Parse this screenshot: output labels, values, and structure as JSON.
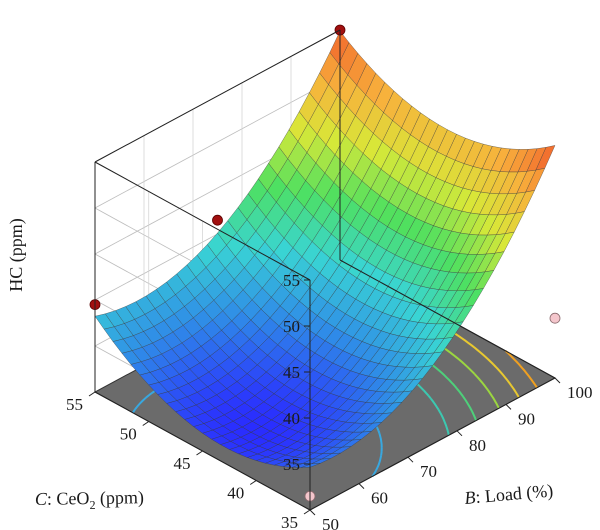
{
  "chart_data": {
    "type": "surface",
    "zlabel": "HC (ppm)",
    "xlabel_var": "B",
    "xlabel_rest": ": Load (%)",
    "ylabel_var": "C",
    "ylabel_mid": ": CeO",
    "ylabel_sub": "2",
    "ylabel_rest": " (ppm)",
    "x_axis": {
      "name": "Load",
      "unit": "%",
      "range": [
        50,
        100
      ],
      "ticks": [
        50,
        60,
        70,
        80,
        90,
        100
      ]
    },
    "y_axis": {
      "name": "CeO2",
      "unit": "ppm",
      "range": [
        35,
        55
      ],
      "ticks": [
        35,
        40,
        45,
        50,
        55
      ]
    },
    "z_axis": {
      "name": "HC",
      "unit": "ppm",
      "range": [
        30,
        55
      ],
      "ticks": [
        35,
        40,
        45,
        50,
        55
      ]
    },
    "surface_corners": [
      {
        "load": 50,
        "ceo2": 35,
        "hc": 32
      },
      {
        "load": 100,
        "ceo2": 35,
        "hc": 51.5
      },
      {
        "load": 50,
        "ceo2": 55,
        "hc": 38.2
      },
      {
        "load": 100,
        "ceo2": 55,
        "hc": 56
      }
    ],
    "surface_minimum": {
      "load": 55,
      "ceo2": 43,
      "hc": 31.5
    },
    "design_points": [
      {
        "load": 50,
        "ceo2": 55,
        "hc": 39.5,
        "position": "above"
      },
      {
        "load": 75,
        "ceo2": 55,
        "hc": 41.5,
        "position": "above"
      },
      {
        "load": 100,
        "ceo2": 55,
        "hc": 55,
        "position": "above"
      },
      {
        "load": 50,
        "ceo2": 35,
        "hc": 31.5,
        "position": "below"
      },
      {
        "load": 75,
        "ceo2": 45,
        "hc": 33.5,
        "position": "below"
      },
      {
        "load": 100,
        "ceo2": 35,
        "hc": 36.5,
        "position": "below"
      },
      {
        "load": 100,
        "ceo2": 45,
        "hc": 49,
        "position": "below"
      }
    ],
    "floor_contours": [
      {
        "level": 35,
        "color": "#38a8e0"
      },
      {
        "level": 40,
        "color": "#3cc8b0"
      },
      {
        "level": 43,
        "color": "#4ed07a"
      },
      {
        "level": 46,
        "color": "#9bd640"
      },
      {
        "level": 49,
        "color": "#e8c830"
      },
      {
        "level": 52,
        "color": "#f0a020"
      }
    ],
    "colormap": [
      "#2a2aff",
      "#2f8ae8",
      "#39d4d4",
      "#4ee060",
      "#d8e838",
      "#f8b03c",
      "#f05a2a"
    ],
    "floor_color": "#6b6b6b",
    "grid": true
  }
}
